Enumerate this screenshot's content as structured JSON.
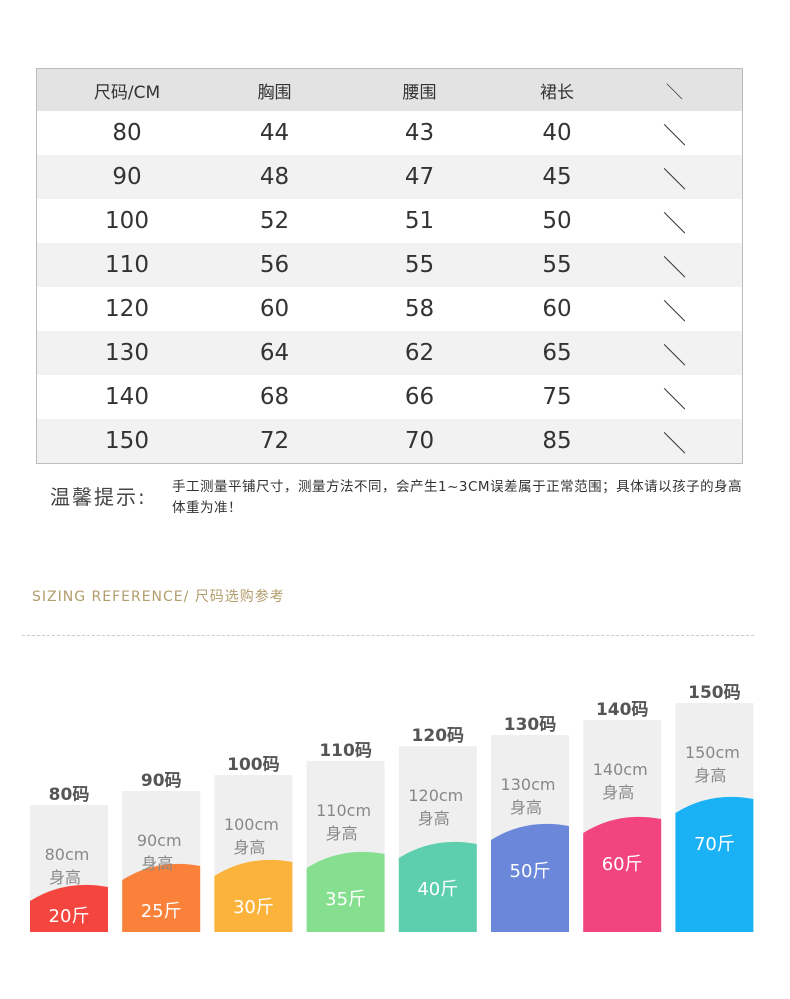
{
  "table": {
    "header": [
      "尺码/CM",
      "胸围",
      "腰围",
      "裙长",
      "＼"
    ],
    "rows": [
      [
        "80",
        "44",
        "43",
        "40",
        "＼"
      ],
      [
        "90",
        "48",
        "47",
        "45",
        "＼"
      ],
      [
        "100",
        "52",
        "51",
        "50",
        "＼"
      ],
      [
        "110",
        "56",
        "55",
        "55",
        "＼"
      ],
      [
        "120",
        "60",
        "58",
        "60",
        "＼"
      ],
      [
        "130",
        "64",
        "62",
        "65",
        "＼"
      ],
      [
        "140",
        "68",
        "66",
        "75",
        "＼"
      ],
      [
        "150",
        "72",
        "70",
        "85",
        "＼"
      ]
    ]
  },
  "note": {
    "label": "温馨提示:",
    "text": "手工测量平铺尺寸，测量方法不同，会产生1~3CM误差属于正常范围；具体请以孩子的身高体重为准！"
  },
  "reference": {
    "title": "SIZING REFERENCE/ 尺码选购参考",
    "items": [
      {
        "size": "80码",
        "height": "80cm",
        "height_label": "身高",
        "weight": "20斤"
      },
      {
        "size": "90码",
        "height": "90cm",
        "height_label": "身高",
        "weight": "25斤"
      },
      {
        "size": "100码",
        "height": "100cm",
        "height_label": "身高",
        "weight": "30斤"
      },
      {
        "size": "110码",
        "height": "110cm",
        "height_label": "身高",
        "weight": "35斤"
      },
      {
        "size": "120码",
        "height": "120cm",
        "height_label": "身高",
        "weight": "40斤"
      },
      {
        "size": "130码",
        "height": "130cm",
        "height_label": "身高",
        "weight": "50斤"
      },
      {
        "size": "140码",
        "height": "140cm",
        "height_label": "身高",
        "weight": "60斤"
      },
      {
        "size": "150码",
        "height": "150cm",
        "height_label": "身高",
        "weight": "70斤"
      }
    ]
  }
}
